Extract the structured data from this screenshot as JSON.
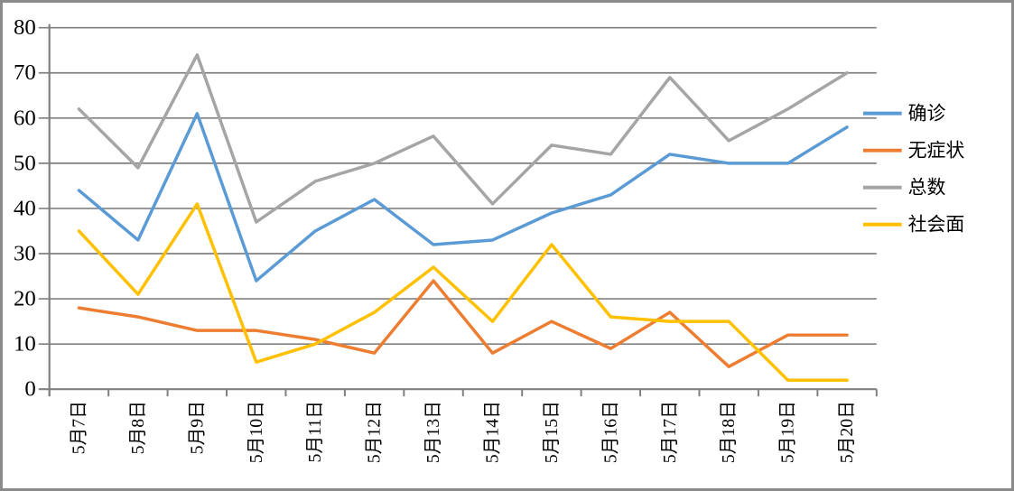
{
  "chart_data": {
    "type": "line",
    "title": "",
    "xlabel": "",
    "ylabel": "",
    "categories": [
      "5月7日",
      "5月8日",
      "5月9日",
      "5月10日",
      "5月11日",
      "5月12日",
      "5月13日",
      "5月14日",
      "5月15日",
      "5月16日",
      "5月17日",
      "5月18日",
      "5月19日",
      "5月20日"
    ],
    "series": [
      {
        "name": "确诊",
        "color": "#5B9BD5",
        "values": [
          44,
          33,
          61,
          24,
          35,
          42,
          32,
          33,
          39,
          43,
          52,
          50,
          50,
          58
        ]
      },
      {
        "name": "无症状",
        "color": "#ED7D31",
        "values": [
          18,
          16,
          13,
          13,
          11,
          8,
          24,
          8,
          15,
          9,
          17,
          5,
          12,
          12
        ]
      },
      {
        "name": "总数",
        "color": "#A5A5A5",
        "values": [
          62,
          49,
          74,
          37,
          46,
          50,
          56,
          41,
          54,
          52,
          69,
          55,
          62,
          70
        ]
      },
      {
        "name": "社会面",
        "color": "#FFC000",
        "values": [
          35,
          21,
          41,
          6,
          10,
          17,
          27,
          15,
          32,
          16,
          15,
          15,
          2,
          2
        ]
      }
    ],
    "ylim": [
      0,
      80
    ],
    "ytick_interval": 10,
    "y_tick_labels": [
      "0",
      "10",
      "20",
      "30",
      "40",
      "50",
      "60",
      "70",
      "80"
    ],
    "grid": "horizontal",
    "legend_position": "right",
    "x_labels_rotated_degrees": -90,
    "colors": {
      "axis": "#808080",
      "gridline": "#808080",
      "text": "#000000",
      "frame_border": "#8a8a8a",
      "background": "#ffffff"
    }
  }
}
